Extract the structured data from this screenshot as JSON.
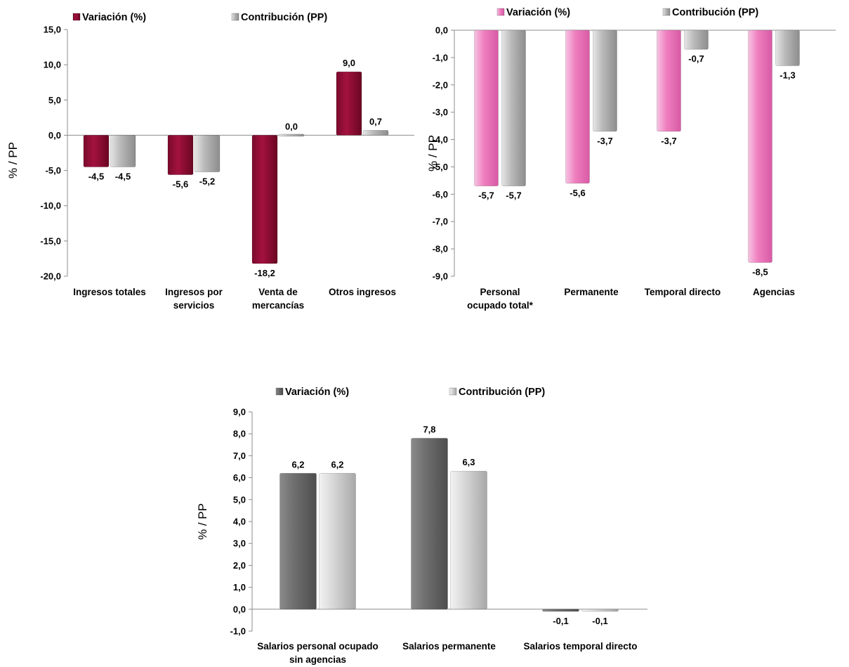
{
  "colors": {
    "maroon": "#a3123f",
    "pink": "#ef7fbf",
    "darkgray": "#6e6e6e",
    "gray": "#b9b9b9",
    "lightgray": "#d6d6d6"
  },
  "chart_data": [
    {
      "type": "bar",
      "ylabel": "% / PP",
      "ylim": [
        -20,
        15
      ],
      "ticks": [
        "15,0",
        "10,0",
        "5,0",
        "0,0",
        "-5,0",
        "-10,0",
        "-15,0",
        "-20,0"
      ],
      "tick_values": [
        15,
        10,
        5,
        0,
        -5,
        -10,
        -15,
        -20
      ],
      "categories": [
        [
          "Ingresos totales"
        ],
        [
          "Ingresos por",
          "servicios"
        ],
        [
          "Venta de",
          "mercancías"
        ],
        [
          "Otros ingresos"
        ]
      ],
      "series": [
        {
          "name": "Variación (%)",
          "color": "maroon",
          "values": [
            -4.5,
            -5.6,
            -18.2,
            9.0
          ],
          "labels": [
            "-4,5",
            "-5,6",
            "-18,2",
            "9,0"
          ]
        },
        {
          "name": "Contribución (PP)",
          "color": "gray",
          "values": [
            -4.5,
            -5.2,
            0.0,
            0.7
          ],
          "labels": [
            "-4,5",
            "-5,2",
            "0,0",
            "0,7"
          ]
        }
      ],
      "legend": "top"
    },
    {
      "type": "bar",
      "ylabel": "% / PP",
      "ylim": [
        -9,
        0
      ],
      "ticks": [
        "0,0",
        "-1,0",
        "-2,0",
        "-3,0",
        "-4,0",
        "-5,0",
        "-6,0",
        "-7,0",
        "-8,0",
        "-9,0"
      ],
      "tick_values": [
        0,
        -1,
        -2,
        -3,
        -4,
        -5,
        -6,
        -7,
        -8,
        -9
      ],
      "categories": [
        [
          "Personal",
          "ocupado total*"
        ],
        [
          "Permanente"
        ],
        [
          "Temporal directo"
        ],
        [
          "Agencias"
        ]
      ],
      "series": [
        {
          "name": "Variación (%)",
          "color": "pink",
          "values": [
            -5.7,
            -5.6,
            -3.7,
            -8.5
          ],
          "labels": [
            "-5,7",
            "-5,6",
            "-3,7",
            "-8,5"
          ]
        },
        {
          "name": "Contribución (PP)",
          "color": "gray",
          "values": [
            -5.7,
            -3.7,
            -0.7,
            -1.3
          ],
          "labels": [
            "-5,7",
            "-3,7",
            "-0,7",
            "-1,3"
          ]
        }
      ],
      "legend": "top"
    },
    {
      "type": "bar",
      "ylabel": "% / PP",
      "ylim": [
        -1,
        9
      ],
      "ticks": [
        "9,0",
        "8,0",
        "7,0",
        "6,0",
        "5,0",
        "4,0",
        "3,0",
        "2,0",
        "1,0",
        "0,0",
        "-1,0"
      ],
      "tick_values": [
        9,
        8,
        7,
        6,
        5,
        4,
        3,
        2,
        1,
        0,
        -1
      ],
      "categories": [
        [
          "Salarios personal ocupado",
          "sin agencias"
        ],
        [
          "Salarios permanente"
        ],
        [
          "Salarios temporal directo"
        ]
      ],
      "series": [
        {
          "name": "Variación (%)",
          "color": "darkgray",
          "values": [
            6.2,
            7.8,
            -0.1
          ],
          "labels": [
            "6,2",
            "7,8",
            "-0,1"
          ]
        },
        {
          "name": "Contribución (PP)",
          "color": "lightgray",
          "values": [
            6.2,
            6.3,
            -0.1
          ],
          "labels": [
            "6,2",
            "6,3",
            "-0,1"
          ]
        }
      ],
      "legend": "top"
    }
  ]
}
